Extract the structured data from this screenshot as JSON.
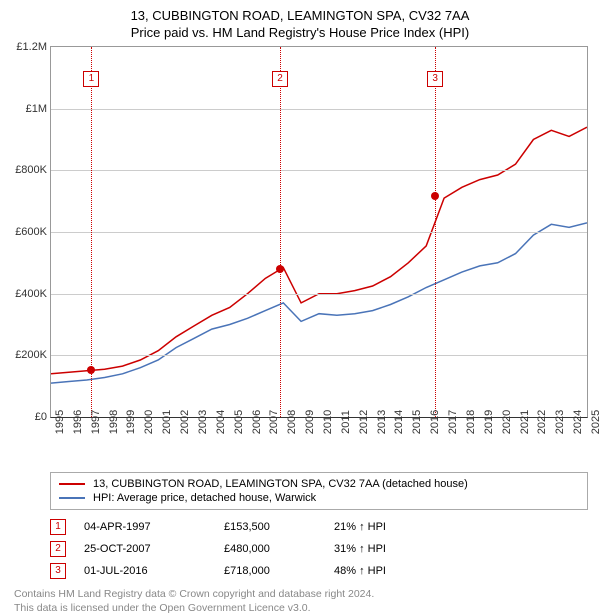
{
  "title_line1": "13, CUBBINGTON ROAD, LEAMINGTON SPA, CV32 7AA",
  "title_line2": "Price paid vs. HM Land Registry's House Price Index (HPI)",
  "chart": {
    "type": "line",
    "background_color": "#ffffff",
    "grid_color": "#cccccc",
    "axis_color": "#333333",
    "y": {
      "min": 0,
      "max": 1200000,
      "ticks": [
        0,
        200000,
        400000,
        600000,
        800000,
        1000000,
        1200000
      ],
      "tick_labels": [
        "£0",
        "£200K",
        "£400K",
        "£600K",
        "£800K",
        "£1M",
        "£1.2M"
      ]
    },
    "x": {
      "min": 1995,
      "max": 2025,
      "ticks": [
        1995,
        1996,
        1997,
        1998,
        1999,
        2000,
        2001,
        2002,
        2003,
        2004,
        2005,
        2006,
        2007,
        2008,
        2009,
        2010,
        2011,
        2012,
        2013,
        2014,
        2015,
        2016,
        2017,
        2018,
        2019,
        2020,
        2021,
        2022,
        2023,
        2024,
        2025
      ]
    },
    "series": [
      {
        "name": "13, CUBBINGTON ROAD, LEAMINGTON SPA, CV32 7AA (detached house)",
        "color": "#cc0000",
        "line_width": 1.5,
        "points_y": [
          140000,
          145000,
          150000,
          155000,
          165000,
          185000,
          215000,
          260000,
          295000,
          330000,
          355000,
          400000,
          450000,
          485000,
          370000,
          400000,
          400000,
          410000,
          425000,
          455000,
          500000,
          555000,
          710000,
          745000,
          770000,
          785000,
          820000,
          900000,
          930000,
          910000,
          940000
        ]
      },
      {
        "name": "HPI: Average price, detached house, Warwick",
        "color": "#4a74b8",
        "line_width": 1.5,
        "points_y": [
          110000,
          115000,
          120000,
          128000,
          140000,
          160000,
          185000,
          225000,
          255000,
          285000,
          300000,
          320000,
          345000,
          370000,
          310000,
          335000,
          330000,
          335000,
          345000,
          365000,
          390000,
          420000,
          445000,
          470000,
          490000,
          500000,
          530000,
          590000,
          625000,
          615000,
          630000
        ]
      }
    ],
    "events": [
      {
        "n": "1",
        "year": 1997.26,
        "y": 153500,
        "color": "#cc0000"
      },
      {
        "n": "2",
        "year": 2007.82,
        "y": 480000,
        "color": "#cc0000"
      },
      {
        "n": "3",
        "year": 2016.5,
        "y": 718000,
        "color": "#cc0000"
      }
    ],
    "marker_top_offset": 24
  },
  "legend": [
    {
      "color": "#cc0000",
      "label": "13, CUBBINGTON ROAD, LEAMINGTON SPA, CV32 7AA (detached house)"
    },
    {
      "color": "#4a74b8",
      "label": "HPI: Average price, detached house, Warwick"
    }
  ],
  "event_rows": [
    {
      "n": "1",
      "color": "#cc0000",
      "date": "04-APR-1997",
      "price": "£153,500",
      "delta": "21% ↑ HPI"
    },
    {
      "n": "2",
      "color": "#cc0000",
      "date": "25-OCT-2007",
      "price": "£480,000",
      "delta": "31% ↑ HPI"
    },
    {
      "n": "3",
      "color": "#cc0000",
      "date": "01-JUL-2016",
      "price": "£718,000",
      "delta": "48% ↑ HPI"
    }
  ],
  "footnote_line1": "Contains HM Land Registry data © Crown copyright and database right 2024.",
  "footnote_line2": "This data is licensed under the Open Government Licence v3.0."
}
